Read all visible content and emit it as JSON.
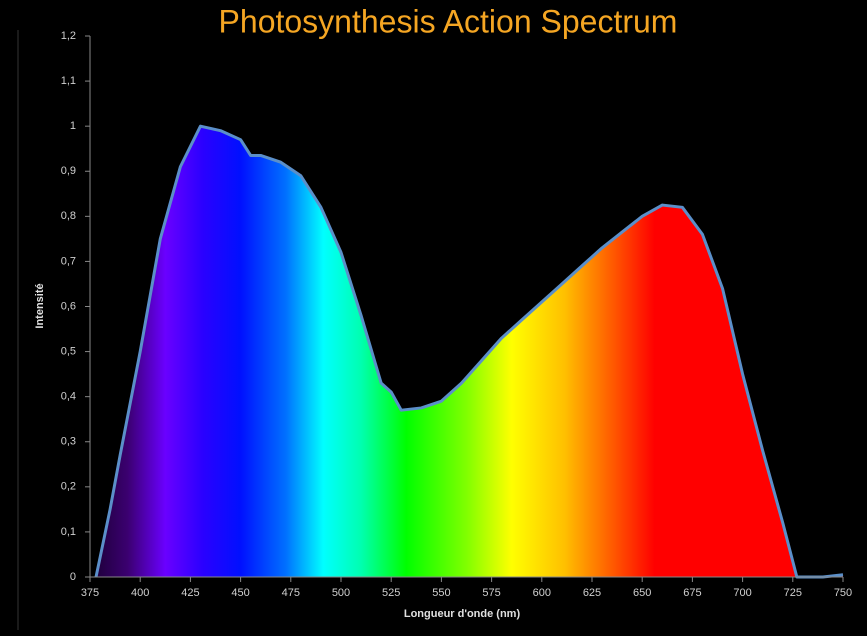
{
  "chart_data": {
    "type": "area",
    "title": "Photosynthesis Action Spectrum",
    "xlabel": "Longueur d'onde (nm)",
    "ylabel": "Intensité",
    "x": [
      378,
      385,
      390,
      400,
      410,
      420,
      430,
      440,
      450,
      455,
      460,
      470,
      480,
      490,
      500,
      510,
      520,
      525,
      530,
      540,
      550,
      560,
      570,
      580,
      590,
      600,
      610,
      620,
      630,
      640,
      650,
      660,
      670,
      680,
      690,
      700,
      710,
      720,
      727,
      740,
      750
    ],
    "series": [
      {
        "name": "Intensité",
        "color": "#5b8fc9",
        "values": [
          0,
          0.15,
          0.27,
          0.5,
          0.75,
          0.91,
          1.0,
          0.99,
          0.97,
          0.935,
          0.935,
          0.92,
          0.89,
          0.82,
          0.72,
          0.58,
          0.43,
          0.41,
          0.37,
          0.375,
          0.39,
          0.43,
          0.48,
          0.53,
          0.57,
          0.61,
          0.65,
          0.69,
          0.73,
          0.765,
          0.8,
          0.825,
          0.82,
          0.76,
          0.64,
          0.45,
          0.28,
          0.12,
          0,
          0,
          0.005
        ]
      }
    ],
    "xlim": [
      375,
      750
    ],
    "xticks": [
      375,
      400,
      425,
      450,
      475,
      500,
      525,
      550,
      575,
      600,
      625,
      650,
      675,
      700,
      725,
      750
    ],
    "ylim": [
      0,
      1.2
    ],
    "yticks": [
      0,
      {
        "value": 0.1,
        "label": "0,1"
      },
      {
        "value": 0.2,
        "label": "0,2"
      },
      {
        "value": 0.3,
        "label": "0,3"
      },
      {
        "value": 0.4,
        "label": "0,4"
      },
      {
        "value": 0.5,
        "label": "0,5"
      },
      {
        "value": 0.6,
        "label": "0,6"
      },
      {
        "value": 0.7,
        "label": "0,7"
      },
      {
        "value": 0.8,
        "label": "0,8"
      },
      {
        "value": 0.9,
        "label": "0,9"
      },
      1,
      {
        "value": 1.1,
        "label": "1,1"
      },
      {
        "value": 1.2,
        "label": "1,2"
      }
    ]
  }
}
